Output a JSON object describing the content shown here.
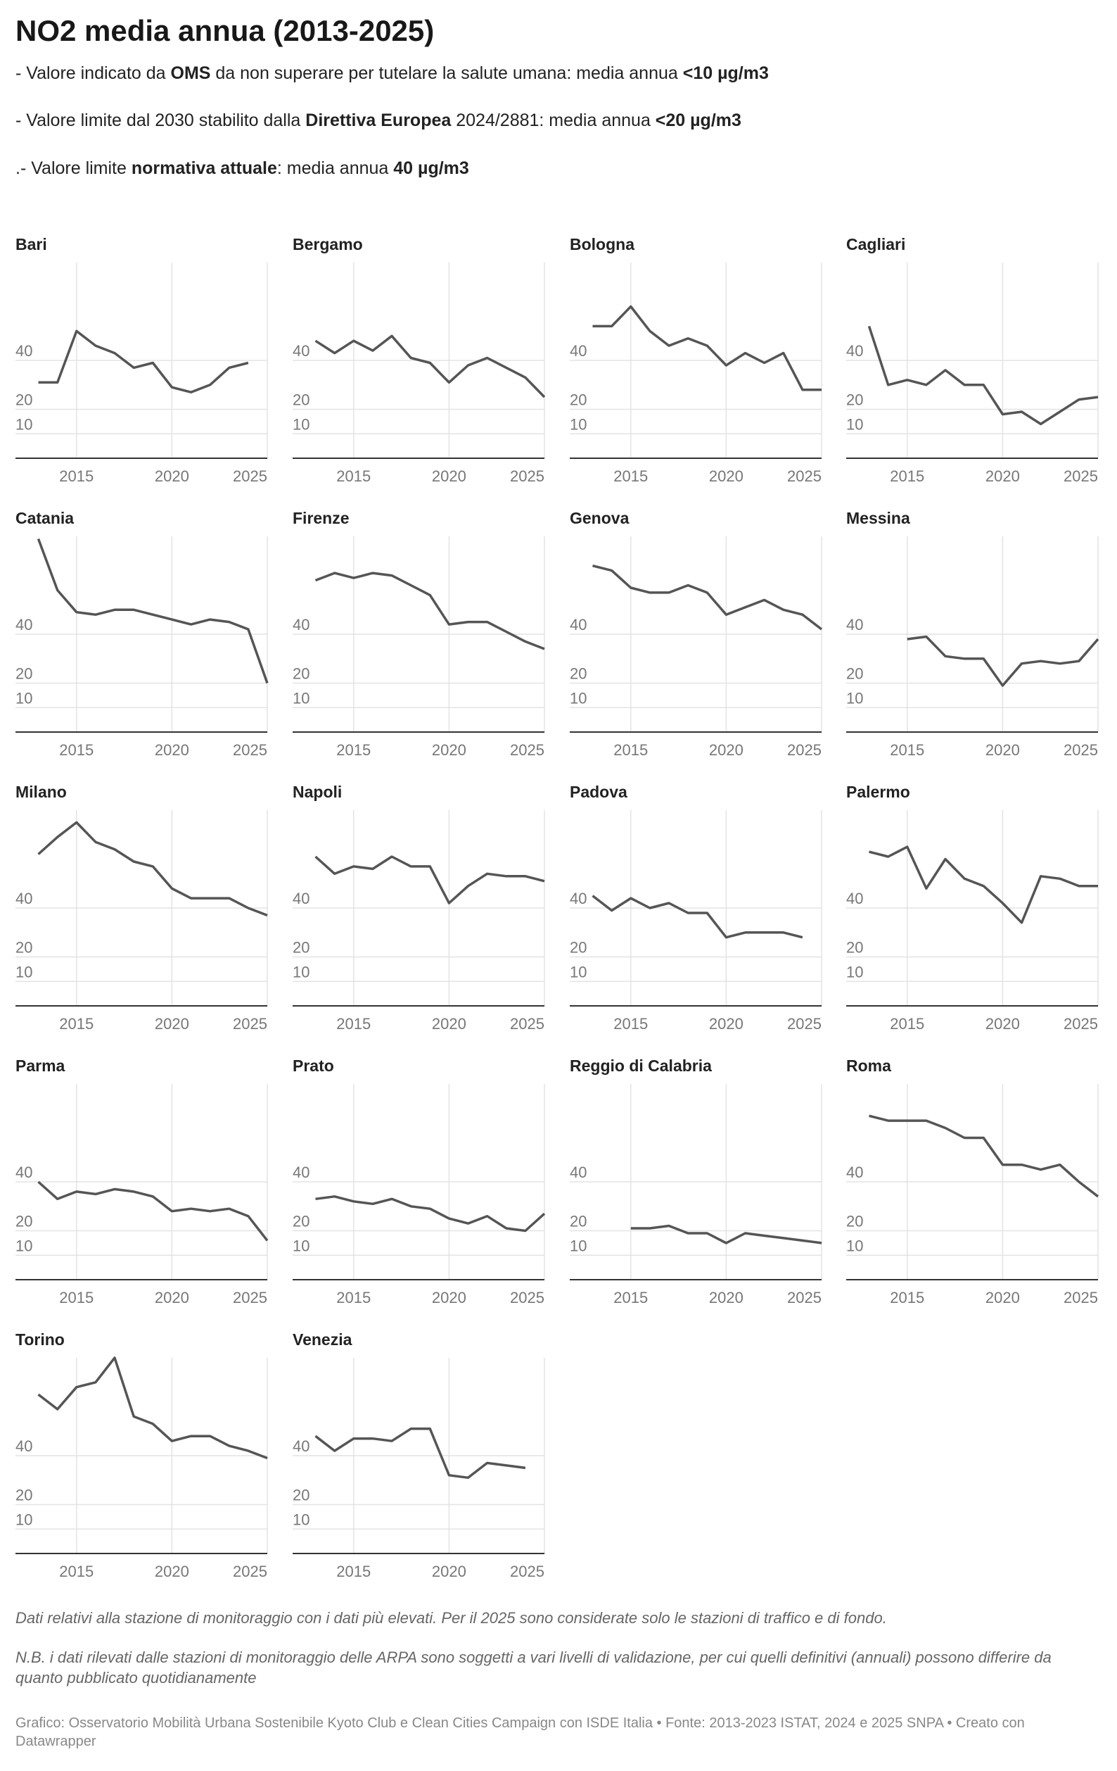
{
  "title": "NO2 media annua (2013-2025)",
  "description": [
    [
      {
        "text": "- Valore indicato da "
      },
      {
        "text": "OMS",
        "bold": true
      },
      {
        "text": " da non superare per tutelare la salute umana: media annua "
      },
      {
        "text": "<10 µg/m3",
        "bold": true
      }
    ],
    [
      {
        "text": "- Valore limite dal 2030 stabilito dalla "
      },
      {
        "text": "Direttiva Europea",
        "bold": true
      },
      {
        "text": " 2024/2881: media annua "
      },
      {
        "text": "<20 µg/m3",
        "bold": true
      }
    ],
    [
      {
        "text": ".- Valore limite "
      },
      {
        "text": "normativa attuale",
        "bold": true
      },
      {
        "text": ": media annua "
      },
      {
        "text": "40 µg/m3",
        "bold": true
      }
    ]
  ],
  "footnotes": [
    "Dati relativi alla stazione di monitoraggio con i dati più elevati. Per il 2025 sono considerate solo le stazioni di traffico e di fondo.",
    "N.B. i dati rilevati dalle stazioni di monitoraggio delle ARPA sono soggetti a vari livelli di validazione, per cui quelli definitivi (annuali) possono differire da quanto pubblicato quotidianamente"
  ],
  "credit": "Grafico: Osservatorio Mobilità Urbana Sostenibile Kyoto Club e Clean Cities Campaign con ISDE Italia • Fonte: 2013-2023 ISTAT, 2024 e 2025 SNPA • Creato con Datawrapper",
  "chart_data": [
    {
      "type": "line",
      "title": "Bari",
      "color": "#555555",
      "x": [
        2013,
        2014,
        2015,
        2016,
        2017,
        2018,
        2019,
        2020,
        2021,
        2022,
        2023,
        2024,
        2025
      ],
      "values": [
        31,
        31,
        52,
        46,
        43,
        37,
        39,
        29,
        27,
        30,
        37,
        39,
        null
      ],
      "xlim": [
        2011.8,
        2025
      ],
      "ylim": [
        0,
        80
      ],
      "xticks": [
        2015,
        2020,
        2025
      ],
      "yticks": [
        10,
        20,
        40
      ]
    },
    {
      "type": "line",
      "title": "Bergamo",
      "color": "#555555",
      "x": [
        2013,
        2014,
        2015,
        2016,
        2017,
        2018,
        2019,
        2020,
        2021,
        2022,
        2023,
        2024,
        2025
      ],
      "values": [
        48,
        43,
        48,
        44,
        50,
        41,
        39,
        31,
        38,
        41,
        37,
        33,
        25
      ],
      "xlim": [
        2011.8,
        2025
      ],
      "ylim": [
        0,
        80
      ],
      "xticks": [
        2015,
        2020,
        2025
      ],
      "yticks": [
        10,
        20,
        40
      ]
    },
    {
      "type": "line",
      "title": "Bologna",
      "color": "#555555",
      "x": [
        2013,
        2014,
        2015,
        2016,
        2017,
        2018,
        2019,
        2020,
        2021,
        2022,
        2023,
        2024,
        2025
      ],
      "values": [
        54,
        54,
        62,
        52,
        46,
        49,
        46,
        38,
        43,
        39,
        43,
        28,
        28
      ],
      "xlim": [
        2011.8,
        2025
      ],
      "ylim": [
        0,
        80
      ],
      "xticks": [
        2015,
        2020,
        2025
      ],
      "yticks": [
        10,
        20,
        40
      ]
    },
    {
      "type": "line",
      "title": "Cagliari",
      "color": "#555555",
      "x": [
        2013,
        2014,
        2015,
        2016,
        2017,
        2018,
        2019,
        2020,
        2021,
        2022,
        2023,
        2024,
        2025
      ],
      "values": [
        54,
        30,
        32,
        30,
        36,
        30,
        30,
        18,
        19,
        14,
        19,
        24,
        25
      ],
      "xlim": [
        2011.8,
        2025
      ],
      "ylim": [
        0,
        80
      ],
      "xticks": [
        2015,
        2020,
        2025
      ],
      "yticks": [
        10,
        20,
        40
      ]
    },
    {
      "type": "line",
      "title": "Catania",
      "color": "#555555",
      "x": [
        2013,
        2014,
        2015,
        2016,
        2017,
        2018,
        2019,
        2020,
        2021,
        2022,
        2023,
        2024,
        2025
      ],
      "values": [
        79,
        58,
        49,
        48,
        50,
        50,
        48,
        46,
        44,
        46,
        45,
        42,
        20
      ],
      "xlim": [
        2011.8,
        2025
      ],
      "ylim": [
        0,
        80
      ],
      "xticks": [
        2015,
        2020,
        2025
      ],
      "yticks": [
        10,
        20,
        40
      ]
    },
    {
      "type": "line",
      "title": "Firenze",
      "color": "#555555",
      "x": [
        2013,
        2014,
        2015,
        2016,
        2017,
        2018,
        2019,
        2020,
        2021,
        2022,
        2023,
        2024,
        2025
      ],
      "values": [
        62,
        65,
        63,
        65,
        64,
        60,
        56,
        44,
        45,
        45,
        41,
        37,
        34
      ],
      "xlim": [
        2011.8,
        2025
      ],
      "ylim": [
        0,
        80
      ],
      "xticks": [
        2015,
        2020,
        2025
      ],
      "yticks": [
        10,
        20,
        40
      ]
    },
    {
      "type": "line",
      "title": "Genova",
      "color": "#555555",
      "x": [
        2013,
        2014,
        2015,
        2016,
        2017,
        2018,
        2019,
        2020,
        2021,
        2022,
        2023,
        2024,
        2025
      ],
      "values": [
        68,
        66,
        59,
        57,
        57,
        60,
        57,
        48,
        51,
        54,
        50,
        48,
        42
      ],
      "xlim": [
        2011.8,
        2025
      ],
      "ylim": [
        0,
        80
      ],
      "xticks": [
        2015,
        2020,
        2025
      ],
      "yticks": [
        10,
        20,
        40
      ]
    },
    {
      "type": "line",
      "title": "Messina",
      "color": "#555555",
      "x": [
        2013,
        2014,
        2015,
        2016,
        2017,
        2018,
        2019,
        2020,
        2021,
        2022,
        2023,
        2024,
        2025
      ],
      "values": [
        null,
        null,
        38,
        39,
        31,
        30,
        30,
        19,
        28,
        29,
        28,
        29,
        38
      ],
      "xlim": [
        2011.8,
        2025
      ],
      "ylim": [
        0,
        80
      ],
      "xticks": [
        2015,
        2020,
        2025
      ],
      "yticks": [
        10,
        20,
        40
      ]
    },
    {
      "type": "line",
      "title": "Milano",
      "color": "#555555",
      "x": [
        2013,
        2014,
        2015,
        2016,
        2017,
        2018,
        2019,
        2020,
        2021,
        2022,
        2023,
        2024,
        2025
      ],
      "values": [
        62,
        69,
        75,
        67,
        64,
        59,
        57,
        48,
        44,
        44,
        44,
        40,
        37
      ],
      "xlim": [
        2011.8,
        2025
      ],
      "ylim": [
        0,
        80
      ],
      "xticks": [
        2015,
        2020,
        2025
      ],
      "yticks": [
        10,
        20,
        40
      ]
    },
    {
      "type": "line",
      "title": "Napoli",
      "color": "#555555",
      "x": [
        2013,
        2014,
        2015,
        2016,
        2017,
        2018,
        2019,
        2020,
        2021,
        2022,
        2023,
        2024,
        2025
      ],
      "values": [
        61,
        54,
        57,
        56,
        61,
        57,
        57,
        42,
        49,
        54,
        53,
        53,
        51
      ],
      "xlim": [
        2011.8,
        2025
      ],
      "ylim": [
        0,
        80
      ],
      "xticks": [
        2015,
        2020,
        2025
      ],
      "yticks": [
        10,
        20,
        40
      ]
    },
    {
      "type": "line",
      "title": "Padova",
      "color": "#555555",
      "x": [
        2013,
        2014,
        2015,
        2016,
        2017,
        2018,
        2019,
        2020,
        2021,
        2022,
        2023,
        2024,
        2025
      ],
      "values": [
        45,
        39,
        44,
        40,
        42,
        38,
        38,
        28,
        30,
        30,
        30,
        28,
        null
      ],
      "xlim": [
        2011.8,
        2025
      ],
      "ylim": [
        0,
        80
      ],
      "xticks": [
        2015,
        2020,
        2025
      ],
      "yticks": [
        10,
        20,
        40
      ]
    },
    {
      "type": "line",
      "title": "Palermo",
      "color": "#555555",
      "x": [
        2013,
        2014,
        2015,
        2016,
        2017,
        2018,
        2019,
        2020,
        2021,
        2022,
        2023,
        2024,
        2025
      ],
      "values": [
        63,
        61,
        65,
        48,
        60,
        52,
        49,
        42,
        34,
        53,
        52,
        49,
        49
      ],
      "xlim": [
        2011.8,
        2025
      ],
      "ylim": [
        0,
        80
      ],
      "xticks": [
        2015,
        2020,
        2025
      ],
      "yticks": [
        10,
        20,
        40
      ]
    },
    {
      "type": "line",
      "title": "Parma",
      "color": "#555555",
      "x": [
        2013,
        2014,
        2015,
        2016,
        2017,
        2018,
        2019,
        2020,
        2021,
        2022,
        2023,
        2024,
        2025
      ],
      "values": [
        40,
        33,
        36,
        35,
        37,
        36,
        34,
        28,
        29,
        28,
        29,
        26,
        16
      ],
      "xlim": [
        2011.8,
        2025
      ],
      "ylim": [
        0,
        80
      ],
      "xticks": [
        2015,
        2020,
        2025
      ],
      "yticks": [
        10,
        20,
        40
      ]
    },
    {
      "type": "line",
      "title": "Prato",
      "color": "#555555",
      "x": [
        2013,
        2014,
        2015,
        2016,
        2017,
        2018,
        2019,
        2020,
        2021,
        2022,
        2023,
        2024,
        2025
      ],
      "values": [
        33,
        34,
        32,
        31,
        33,
        30,
        29,
        25,
        23,
        26,
        21,
        20,
        27
      ],
      "xlim": [
        2011.8,
        2025
      ],
      "ylim": [
        0,
        80
      ],
      "xticks": [
        2015,
        2020,
        2025
      ],
      "yticks": [
        10,
        20,
        40
      ]
    },
    {
      "type": "line",
      "title": "Reggio di Calabria",
      "color": "#555555",
      "x": [
        2013,
        2014,
        2015,
        2016,
        2017,
        2018,
        2019,
        2020,
        2021,
        2022,
        2023,
        2024,
        2025
      ],
      "values": [
        null,
        null,
        21,
        21,
        22,
        19,
        19,
        15,
        19,
        18,
        17,
        16,
        15
      ],
      "xlim": [
        2011.8,
        2025
      ],
      "ylim": [
        0,
        80
      ],
      "xticks": [
        2015,
        2020,
        2025
      ],
      "yticks": [
        10,
        20,
        40
      ]
    },
    {
      "type": "line",
      "title": "Roma",
      "color": "#555555",
      "x": [
        2013,
        2014,
        2015,
        2016,
        2017,
        2018,
        2019,
        2020,
        2021,
        2022,
        2023,
        2024,
        2025
      ],
      "values": [
        67,
        65,
        65,
        65,
        62,
        58,
        58,
        47,
        47,
        45,
        47,
        40,
        34
      ],
      "xlim": [
        2011.8,
        2025
      ],
      "ylim": [
        0,
        80
      ],
      "xticks": [
        2015,
        2020,
        2025
      ],
      "yticks": [
        10,
        20,
        40
      ]
    },
    {
      "type": "line",
      "title": "Torino",
      "color": "#555555",
      "x": [
        2013,
        2014,
        2015,
        2016,
        2017,
        2018,
        2019,
        2020,
        2021,
        2022,
        2023,
        2024,
        2025
      ],
      "values": [
        65,
        59,
        68,
        70,
        80,
        56,
        53,
        46,
        48,
        48,
        44,
        42,
        39
      ],
      "xlim": [
        2011.8,
        2025
      ],
      "ylim": [
        0,
        80
      ],
      "xticks": [
        2015,
        2020,
        2025
      ],
      "yticks": [
        10,
        20,
        40
      ]
    },
    {
      "type": "line",
      "title": "Venezia",
      "color": "#555555",
      "x": [
        2013,
        2014,
        2015,
        2016,
        2017,
        2018,
        2019,
        2020,
        2021,
        2022,
        2023,
        2024,
        2025
      ],
      "values": [
        48,
        42,
        47,
        47,
        46,
        51,
        51,
        32,
        31,
        37,
        36,
        35,
        null
      ],
      "xlim": [
        2011.8,
        2025
      ],
      "ylim": [
        0,
        80
      ],
      "xticks": [
        2015,
        2020,
        2025
      ],
      "yticks": [
        10,
        20,
        40
      ]
    }
  ]
}
